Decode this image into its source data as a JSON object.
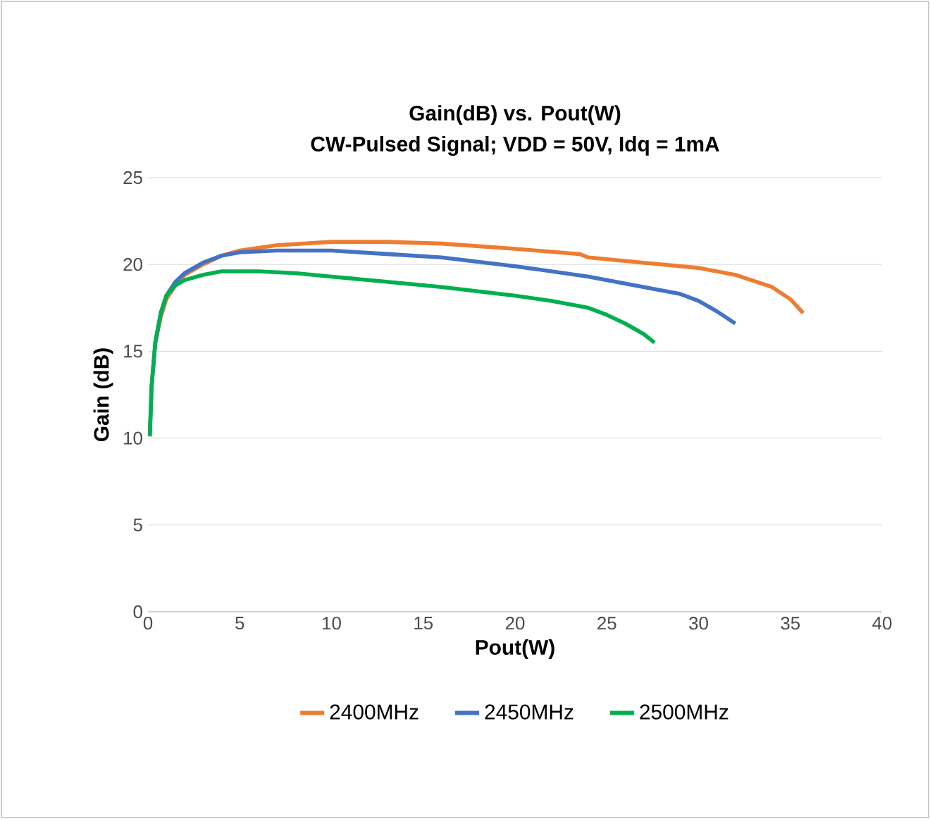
{
  "chart_data": {
    "type": "line",
    "title": "Gain(dB) vs. Pout(W)",
    "subtitle": "CW-Pulsed Signal; VDD = 50V, Idq = 1mA",
    "xlabel": "Pout(W)",
    "ylabel": "Gain (dB)",
    "xlim": [
      0,
      40
    ],
    "xticks": [
      0,
      5,
      10,
      15,
      20,
      25,
      30,
      35,
      40
    ],
    "ylim": [
      0,
      25
    ],
    "yticks": [
      0,
      5,
      10,
      15,
      20,
      25
    ],
    "grid": "y",
    "legend": "bottom",
    "marker": "none",
    "line_style": "solid",
    "series": [
      {
        "name": "2400MHz",
        "color": "#ed7d31",
        "x": [
          0.4,
          0.7,
          1,
          1.5,
          2,
          3,
          4,
          5,
          7,
          10,
          13,
          16,
          20,
          23.5,
          24,
          27,
          30,
          32,
          34,
          35,
          35.7
        ],
        "values": [
          15.5,
          17,
          18,
          18.8,
          19.4,
          20,
          20.5,
          20.8,
          21.1,
          21.3,
          21.3,
          21.2,
          20.9,
          20.6,
          20.4,
          20.1,
          19.8,
          19.4,
          18.7,
          18,
          17.2
        ]
      },
      {
        "name": "2450MHz",
        "color": "#4472c4",
        "x": [
          0.1,
          0.2,
          0.4,
          0.7,
          1,
          1.5,
          2,
          3,
          4,
          5,
          7,
          10,
          13,
          16,
          20,
          24,
          27,
          29,
          30,
          31,
          32
        ],
        "values": [
          10.1,
          13,
          15.5,
          17.2,
          18.2,
          19,
          19.5,
          20.1,
          20.5,
          20.7,
          20.8,
          20.8,
          20.6,
          20.4,
          19.9,
          19.3,
          18.7,
          18.3,
          17.9,
          17.3,
          16.6
        ]
      },
      {
        "name": "2500MHz",
        "color": "#00b050",
        "x": [
          0.1,
          0.2,
          0.4,
          0.7,
          1,
          1.5,
          2,
          3,
          4,
          6,
          8,
          10,
          13,
          16,
          20,
          22,
          24,
          25,
          26,
          27,
          27.6
        ],
        "values": [
          10.1,
          13,
          15.5,
          17.2,
          18.2,
          18.8,
          19.1,
          19.4,
          19.6,
          19.6,
          19.5,
          19.3,
          19,
          18.7,
          18.2,
          17.9,
          17.5,
          17.1,
          16.6,
          16,
          15.5
        ]
      }
    ]
  }
}
